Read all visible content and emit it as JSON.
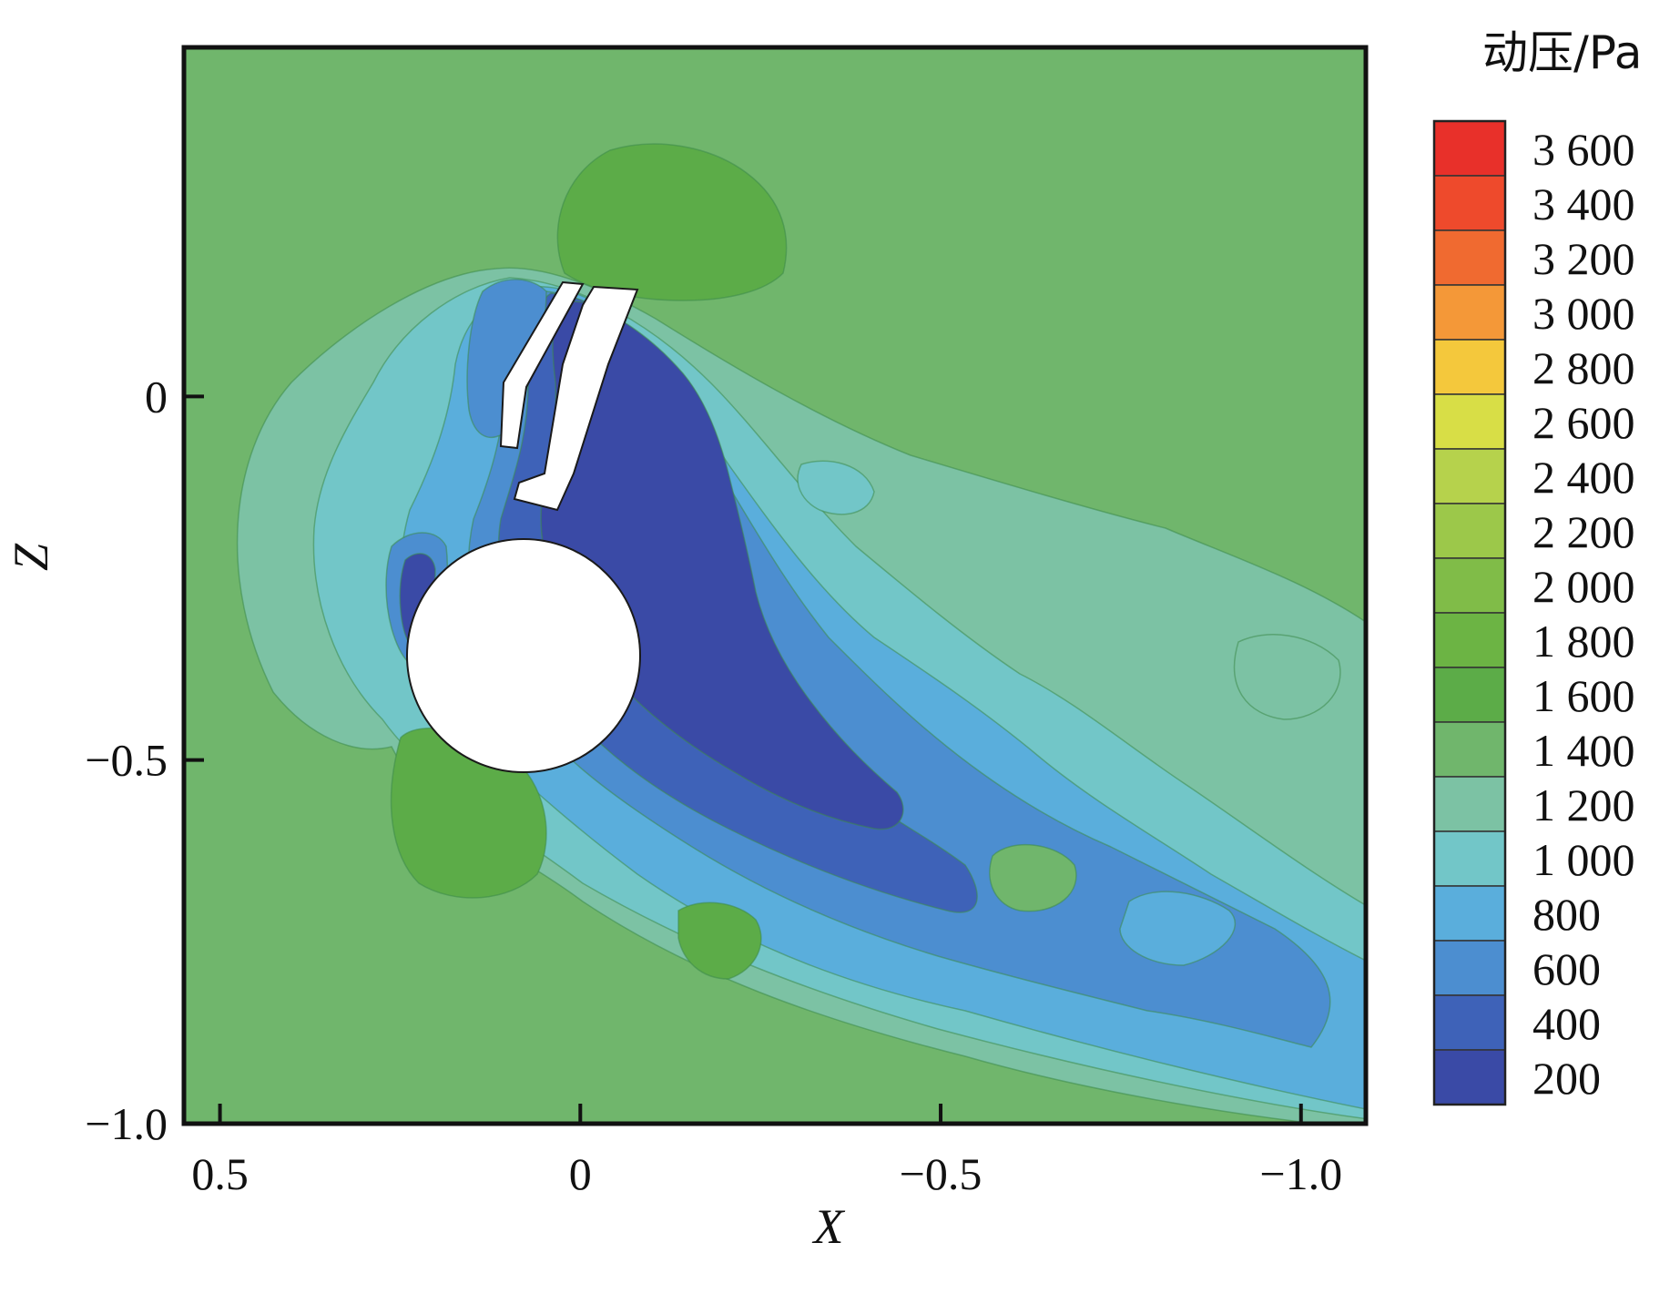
{
  "chart_data": {
    "type": "heatmap",
    "title": "",
    "xlabel": "X",
    "ylabel": "Z",
    "xlim": [
      0.55,
      -1.09
    ],
    "ylim": [
      -1.0,
      0.48
    ],
    "x_ticks": [
      0.5,
      0,
      -0.5,
      -1.0
    ],
    "x_tick_labels": [
      "0.5",
      "0",
      "−0.5",
      "−1.0"
    ],
    "y_ticks": [
      0,
      -0.5,
      -1.0
    ],
    "y_tick_labels": [
      "0",
      "−0.5",
      "−1.0"
    ],
    "colorbar": {
      "title": "动压/Pa",
      "levels": [
        3600,
        3400,
        3200,
        3000,
        2800,
        2600,
        2400,
        2200,
        2000,
        1800,
        1600,
        1400,
        1200,
        1000,
        800,
        600,
        400,
        200
      ],
      "labels": [
        "3 600",
        "3 400",
        "3 200",
        "3 000",
        "2 800",
        "2 600",
        "2 400",
        "2 200",
        "2 000",
        "1 800",
        "1 600",
        "1 400",
        "1 200",
        "1 000",
        "800",
        "600",
        "400",
        "200"
      ],
      "colors": [
        "#e8302a",
        "#ee4a2c",
        "#f06a30",
        "#f49838",
        "#f4c83c",
        "#d8de46",
        "#b6d24c",
        "#9cc84a",
        "#80bc48",
        "#6cb444",
        "#5cac48",
        "#70b66c",
        "#7cc2a4",
        "#72c6c8",
        "#5aaedc",
        "#4c8ed0",
        "#3e62b8",
        "#3a4aa6"
      ]
    },
    "background_level": 1400
  }
}
